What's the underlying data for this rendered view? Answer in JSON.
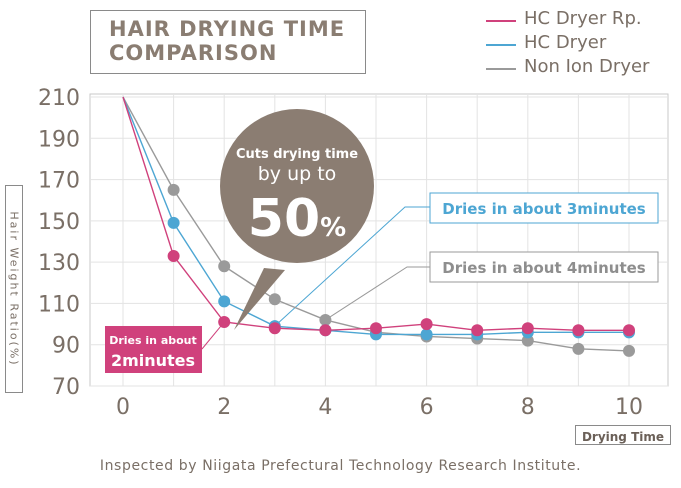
{
  "title_line1": "HAIR DRYING TIME",
  "title_line2": "COMPARISON",
  "ylabel": "Hair Weight Ratio(%)",
  "xlabel": "Drying Time",
  "footer": "Inspected by Niigata Prefectural Technology Research Institute.",
  "colors": {
    "hc_rp": "#d0417c",
    "hc": "#4da6d3",
    "non_ion": "#9a9a9a",
    "bubble": "#8b7d72",
    "axis_text": "#7a6f66"
  },
  "callouts": {
    "bubble": {
      "line1": "Cuts drying time",
      "line2": "by up to",
      "line3": "50",
      "unit": "%"
    },
    "hc": "Dries in about  3minutes",
    "non_ion": "Dries in about  4minutes",
    "rp_line1": "Dries in about",
    "rp_line2": "2minutes"
  },
  "chart_data": {
    "type": "line",
    "title": "HAIR DRYING TIME COMPARISON",
    "xlabel": "Drying Time",
    "ylabel": "Hair Weight Ratio(%)",
    "xlim": [
      0,
      10
    ],
    "ylim": [
      70,
      210
    ],
    "x_ticks": [
      0,
      2,
      4,
      6,
      8,
      10
    ],
    "y_ticks": [
      70,
      90,
      110,
      130,
      150,
      170,
      190,
      210
    ],
    "grid": true,
    "legend_position": "top-right",
    "series": [
      {
        "name": "HC Dryer Rp.",
        "color": "#d0417c",
        "x": [
          0,
          1,
          2,
          3,
          4,
          5,
          6,
          7,
          8,
          9,
          10
        ],
        "y": [
          210,
          133,
          101,
          98,
          97,
          98,
          100,
          97,
          98,
          97,
          97
        ]
      },
      {
        "name": "HC Dryer",
        "color": "#4da6d3",
        "x": [
          0,
          1,
          2,
          3,
          4,
          5,
          6,
          7,
          8,
          9,
          10
        ],
        "y": [
          210,
          149,
          111,
          99,
          97,
          95,
          95,
          95,
          96,
          96,
          96
        ]
      },
      {
        "name": "Non Ion Dryer",
        "color": "#9a9a9a",
        "x": [
          0,
          1,
          2,
          3,
          4,
          5,
          6,
          7,
          8,
          9,
          10
        ],
        "y": [
          210,
          165,
          128,
          112,
          102,
          96,
          94,
          93,
          92,
          88,
          87
        ]
      }
    ]
  }
}
